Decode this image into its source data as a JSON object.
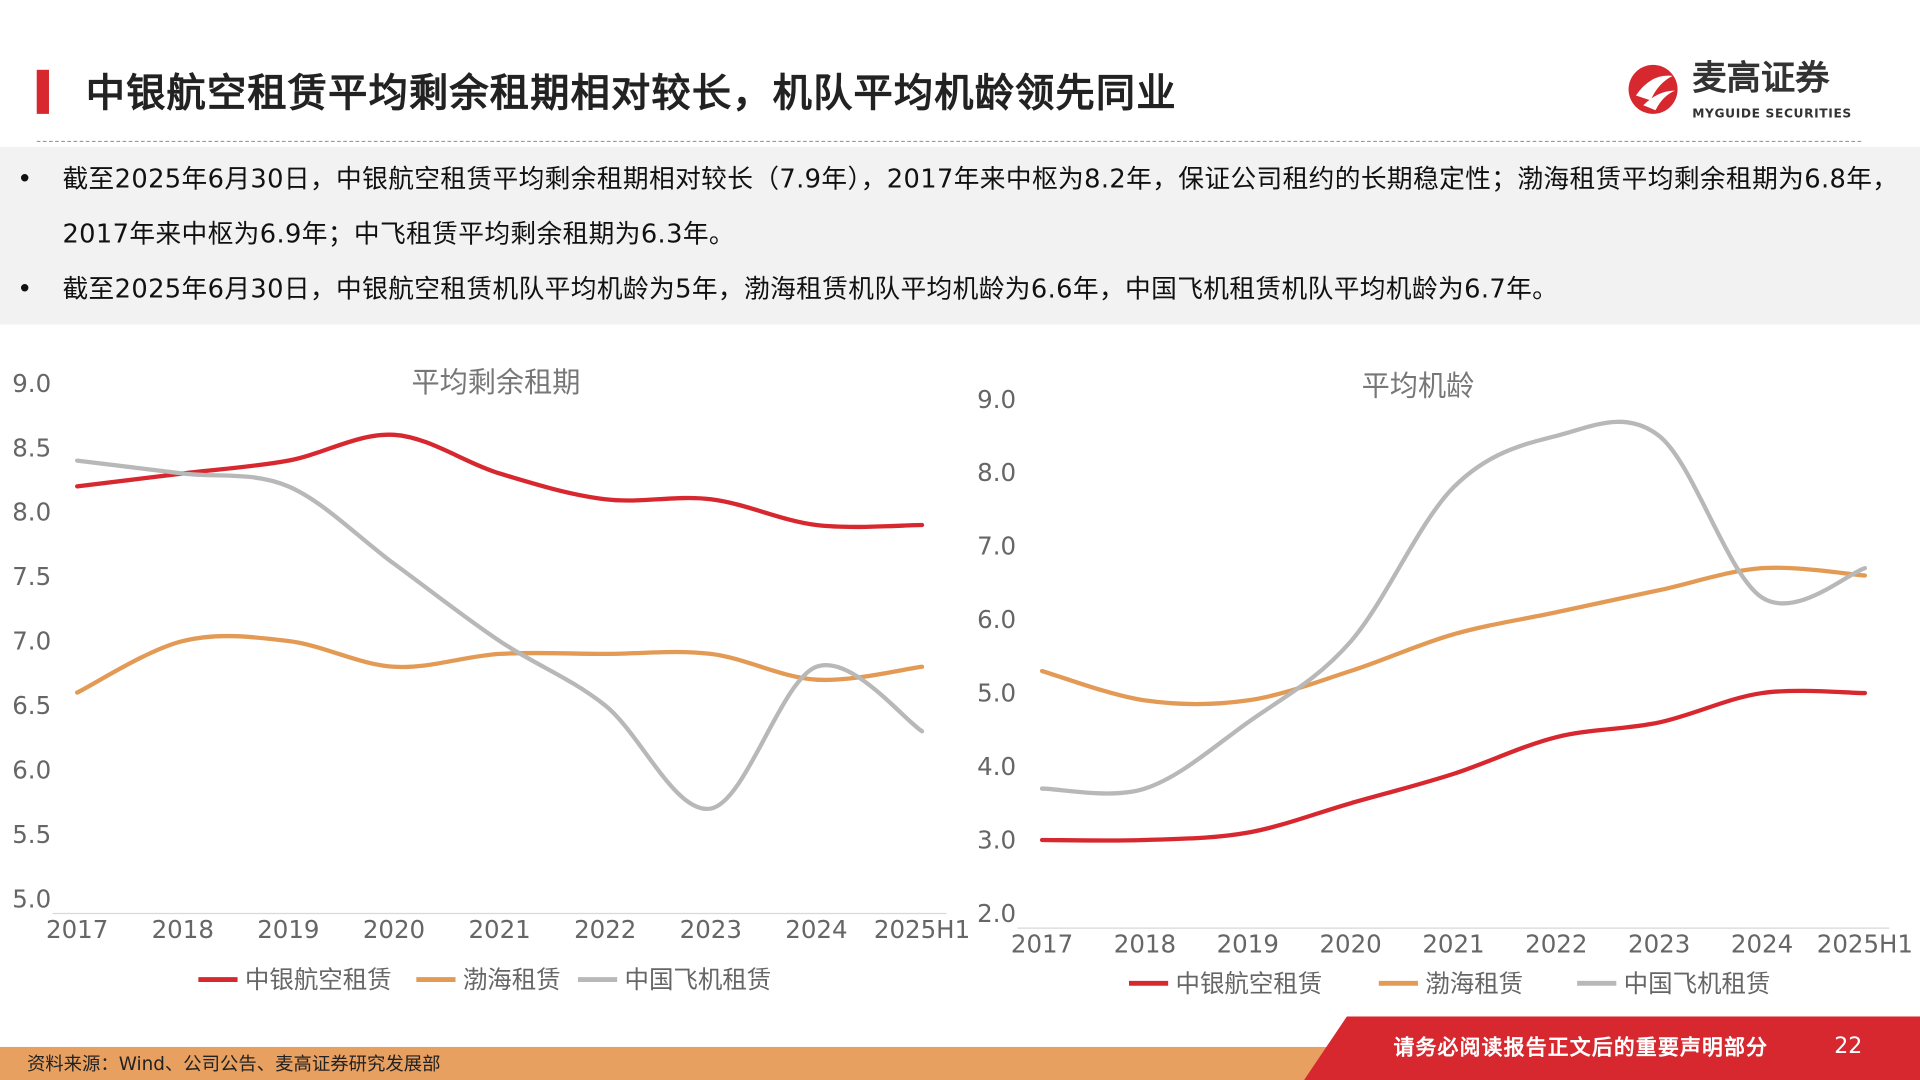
{
  "header": {
    "title": "中银航空租赁平均剩余租期相对较长，机队平均机龄领先同业",
    "logo_cn": "麦高证券",
    "logo_en": "MYGUIDE SECURITIES",
    "accent": "#d7282f"
  },
  "bullets": [
    {
      "dot": "•",
      "text": "截至2025年6月30日，中银航空租赁平均剩余租期相对较长（7.9年），2017年来中枢为8.2年，保证公司租约的长期稳定性；渤海租赁平均剩余租期为6.8年，2017年来中枢为6.9年；中飞租赁平均剩余租期为6.3年。"
    },
    {
      "dot": "•",
      "text": "截至2025年6月30日，中银航空租赁机队平均机龄为5年，渤海租赁机队平均机龄为6.6年，中国飞机租赁机队平均机龄为6.7年。"
    }
  ],
  "chart_data": [
    {
      "type": "line",
      "title": "平均剩余租期",
      "categories": [
        "2017",
        "2018",
        "2019",
        "2020",
        "2021",
        "2022",
        "2023",
        "2024",
        "2025H1"
      ],
      "ylim": [
        5.0,
        9.0
      ],
      "yticks": [
        "5.0",
        "5.5",
        "6.0",
        "6.5",
        "7.0",
        "7.5",
        "8.0",
        "8.5",
        "9.0"
      ],
      "grid": false,
      "legend": "bottom",
      "series": [
        {
          "name": "中银航空租赁",
          "color": "#d7282f",
          "values": [
            8.2,
            8.3,
            8.4,
            8.6,
            8.3,
            8.1,
            8.1,
            7.9,
            7.9
          ]
        },
        {
          "name": "渤海租赁",
          "color": "#e39a55",
          "values": [
            6.6,
            7.0,
            7.0,
            6.8,
            6.9,
            6.9,
            6.9,
            6.7,
            6.8
          ]
        },
        {
          "name": "中国飞机租赁",
          "color": "#b8b8b8",
          "values": [
            8.4,
            8.3,
            8.2,
            7.6,
            7.0,
            6.5,
            5.7,
            6.8,
            6.3
          ]
        }
      ]
    },
    {
      "type": "line",
      "title": "平均机龄",
      "categories": [
        "2017",
        "2018",
        "2019",
        "2020",
        "2021",
        "2022",
        "2023",
        "2024",
        "2025H1"
      ],
      "ylim": [
        2.0,
        9.0
      ],
      "yticks": [
        "2.0",
        "3.0",
        "4.0",
        "5.0",
        "6.0",
        "7.0",
        "8.0",
        "9.0"
      ],
      "grid": false,
      "legend": "bottom",
      "series": [
        {
          "name": "中银航空租赁",
          "color": "#d7282f",
          "values": [
            3.0,
            3.0,
            3.1,
            3.5,
            3.9,
            4.4,
            4.6,
            5.0,
            5.0
          ]
        },
        {
          "name": "渤海租赁",
          "color": "#e39a55",
          "values": [
            5.3,
            4.9,
            4.9,
            5.3,
            5.8,
            6.1,
            6.4,
            6.7,
            6.6
          ]
        },
        {
          "name": "中国飞机租赁",
          "color": "#b8b8b8",
          "values": [
            3.7,
            3.7,
            4.6,
            5.7,
            7.8,
            8.5,
            8.5,
            6.3,
            6.7
          ]
        }
      ]
    }
  ],
  "footer": {
    "source": "资料来源：Wind、公司公告、麦高证券研究发展部",
    "disclaimer": "请务必阅读报告正文后的重要声明部分",
    "page": "22"
  }
}
